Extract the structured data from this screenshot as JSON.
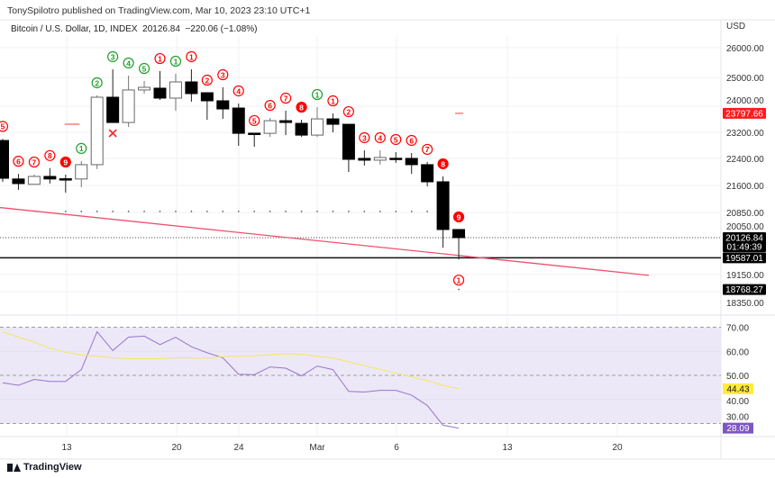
{
  "header": {
    "publisher": "TonySpilotro published on TradingView.com, Mar 10, 2023 23:10 UTC+1",
    "symbol": "Bitcoin / U.S. Dollar, 1D, INDEX",
    "last": "20126.84",
    "change": "−220.06 (−1.08%)"
  },
  "price_axis": {
    "currency": "USD",
    "ticks": [
      "26000.00",
      "25000.00",
      "24000.00",
      "23200.00",
      "22400.00",
      "21600.00",
      "20850.00",
      "20050.00",
      "19150.00",
      "18350.00"
    ],
    "badges": [
      {
        "text": "23797.66",
        "sub": "",
        "bg": "#ff1a1a",
        "fg": "#ffffff"
      },
      {
        "text": "20126.84",
        "sub": "01:49:39",
        "bg": "#000000",
        "fg": "#ffffff"
      },
      {
        "text": "19587.01",
        "sub": "",
        "bg": "#000000",
        "fg": "#ffffff"
      },
      {
        "text": "18768.27",
        "sub": "",
        "bg": "#000000",
        "fg": "#ffffff"
      }
    ]
  },
  "rsi_axis": {
    "ticks": [
      "70.00",
      "60.00",
      "50.00",
      "40.00",
      "30.00"
    ],
    "badges": [
      {
        "text": "44.43",
        "bg": "#ffeb3b",
        "fg": "#131722"
      },
      {
        "text": "28.09",
        "bg": "#7e57c2",
        "fg": "#ffffff"
      }
    ]
  },
  "time_axis": {
    "labels": [
      {
        "text": "13",
        "date": "Feb 13"
      },
      {
        "text": "20",
        "date": "Feb 20"
      },
      {
        "text": "24",
        "date": "Feb 24"
      },
      {
        "text": "Mar",
        "date": "Mar 1"
      },
      {
        "text": "6",
        "date": "Mar 6"
      },
      {
        "text": "13",
        "date": "Mar 13"
      },
      {
        "text": "20",
        "date": "Mar 20"
      }
    ]
  },
  "footer": {
    "brand": "TradingView"
  },
  "colors": {
    "up_count": "#1e9e2a",
    "down_count": "#ff0000",
    "trendline": "#f0506e",
    "rsi": "#9575cd",
    "rsi_ma": "#f5e663",
    "rsi_band": "#ede8f7"
  },
  "chart_data": [
    {
      "type": "candlestick",
      "scale": "log",
      "levels": {
        "horizontal_line": 19587.01,
        "last_price": 20126.84,
        "red_mark": 23797.66,
        "red_mark_left": 23450,
        "support_dots": 20850,
        "low_dot": 18768.27
      },
      "trendline": [
        {
          "date": "Feb 9",
          "price": 20960
        },
        {
          "date": "Mar 20",
          "price": 19130
        }
      ],
      "cross_mark": {
        "date": "Feb 15"
      },
      "candles": [
        {
          "date": "Feb 9",
          "o": 22943,
          "h": 22990,
          "l": 21700,
          "c": 21804,
          "setup": {
            "n": "5",
            "color": "red",
            "filled": false
          }
        },
        {
          "date": "Feb 10",
          "o": 21783,
          "h": 21934,
          "l": 21466,
          "c": 21648,
          "setup": {
            "n": "6",
            "color": "red",
            "filled": false
          }
        },
        {
          "date": "Feb 11",
          "o": 21627,
          "h": 21910,
          "l": 21627,
          "c": 21858,
          "setup": {
            "n": "7",
            "color": "red",
            "filled": false
          }
        },
        {
          "date": "Feb 12",
          "o": 21858,
          "h": 22103,
          "l": 21648,
          "c": 21783,
          "setup": {
            "n": "8",
            "color": "red",
            "filled": false
          }
        },
        {
          "date": "Feb 13",
          "o": 21790,
          "h": 21910,
          "l": 21385,
          "c": 21783,
          "setup": {
            "n": "9",
            "color": "red",
            "filled": true
          }
        },
        {
          "date": "Feb 14",
          "o": 21783,
          "h": 22316,
          "l": 21544,
          "c": 22207,
          "setup": {
            "n": "1",
            "color": "green",
            "filled": false
          }
        },
        {
          "date": "Feb 15",
          "o": 22207,
          "h": 24381,
          "l": 22077,
          "c": 24321,
          "setup": {
            "n": "2",
            "color": "green",
            "filled": false
          }
        },
        {
          "date": "Feb 16",
          "o": 24321,
          "h": 25254,
          "l": 23507,
          "c": 23507,
          "setup": {
            "n": "3",
            "color": "green",
            "filled": false
          }
        },
        {
          "date": "Feb 17",
          "o": 23507,
          "h": 25041,
          "l": 23364,
          "c": 24560,
          "setup": {
            "n": "4",
            "color": "green",
            "filled": false
          }
        },
        {
          "date": "Feb 18",
          "o": 24560,
          "h": 24858,
          "l": 24440,
          "c": 24648,
          "setup": {
            "n": "5",
            "color": "green",
            "filled": false
          }
        },
        {
          "date": "Feb 19",
          "o": 24619,
          "h": 25191,
          "l": 24233,
          "c": 24292,
          "setup": {
            "n": "1",
            "color": "red",
            "filled": false
          }
        },
        {
          "date": "Feb 20",
          "o": 24292,
          "h": 25100,
          "l": 23882,
          "c": 24828,
          "setup": {
            "n": "1",
            "color": "green",
            "filled": false
          }
        },
        {
          "date": "Feb 21",
          "o": 24828,
          "h": 25254,
          "l": 24175,
          "c": 24440,
          "setup": {
            "n": "1",
            "color": "red",
            "filled": false
          }
        },
        {
          "date": "Feb 22",
          "o": 24469,
          "h": 24469,
          "l": 23592,
          "c": 24204,
          "setup": {
            "n": "2",
            "color": "red",
            "filled": false
          }
        },
        {
          "date": "Feb 23",
          "o": 24204,
          "h": 24648,
          "l": 23621,
          "c": 23940,
          "setup": {
            "n": "3",
            "color": "red",
            "filled": false
          }
        },
        {
          "date": "Feb 24",
          "o": 23969,
          "h": 24116,
          "l": 22778,
          "c": 23166,
          "setup": {
            "n": "4",
            "color": "red",
            "filled": false
          }
        },
        {
          "date": "Feb 25",
          "o": 23170,
          "h": 23170,
          "l": 22750,
          "c": 23160,
          "setup": {
            "n": "5",
            "color": "red",
            "filled": false
          }
        },
        {
          "date": "Feb 26",
          "o": 23166,
          "h": 23649,
          "l": 23054,
          "c": 23564,
          "setup": {
            "n": "6",
            "color": "red",
            "filled": false
          }
        },
        {
          "date": "Feb 27",
          "o": 23564,
          "h": 23882,
          "l": 23110,
          "c": 23507,
          "setup": {
            "n": "7",
            "color": "red",
            "filled": false
          }
        },
        {
          "date": "Feb 28",
          "o": 23479,
          "h": 23592,
          "l": 23054,
          "c": 23110,
          "setup": {
            "n": "8",
            "color": "red",
            "filled": true
          }
        },
        {
          "date": "Mar 1",
          "o": 23110,
          "h": 23998,
          "l": 23054,
          "c": 23621,
          "setup": {
            "n": "1",
            "color": "green",
            "filled": false
          }
        },
        {
          "date": "Mar 2",
          "o": 23621,
          "h": 23795,
          "l": 23195,
          "c": 23450,
          "setup": {
            "n": "1",
            "color": "red",
            "filled": false
          }
        },
        {
          "date": "Mar 3",
          "o": 23450,
          "h": 23450,
          "l": 21990,
          "c": 22368,
          "setup": {
            "n": "2",
            "color": "red",
            "filled": false
          }
        },
        {
          "date": "Mar 4",
          "o": 22396,
          "h": 22641,
          "l": 22181,
          "c": 22342,
          "setup": {
            "n": "3",
            "color": "red",
            "filled": false
          }
        },
        {
          "date": "Mar 5",
          "o": 22342,
          "h": 22641,
          "l": 22207,
          "c": 22423,
          "setup": {
            "n": "4",
            "color": "red",
            "filled": false
          }
        },
        {
          "date": "Mar 6",
          "o": 22400,
          "h": 22586,
          "l": 22261,
          "c": 22396,
          "setup": {
            "n": "5",
            "color": "red",
            "filled": false
          }
        },
        {
          "date": "Mar 7",
          "o": 22396,
          "h": 22559,
          "l": 21934,
          "c": 22207,
          "setup": {
            "n": "6",
            "color": "red",
            "filled": false
          }
        },
        {
          "date": "Mar 8",
          "o": 22207,
          "h": 22288,
          "l": 21566,
          "c": 21700,
          "setup": {
            "n": "7",
            "color": "red",
            "filled": false
          }
        },
        {
          "date": "Mar 9",
          "o": 21700,
          "h": 21858,
          "l": 19856,
          "c": 20348,
          "setup": {
            "n": "8",
            "color": "red",
            "filled": true
          }
        },
        {
          "date": "Mar 10",
          "o": 20348,
          "h": 20348,
          "l": 19544,
          "c": 20126.84,
          "setup": {
            "n": "9",
            "color": "red",
            "filled": true
          },
          "below": {
            "n": "1",
            "color": "red"
          }
        }
      ]
    },
    {
      "type": "line",
      "ylim": [
        30,
        70
      ],
      "levels": [
        70,
        50,
        30
      ],
      "series": [
        {
          "values": [
            46.9,
            45.9,
            48.3,
            47.5,
            47.5,
            52.4,
            68.1,
            60.3,
            65.9,
            66.3,
            62.8,
            65.8,
            61.9,
            59.4,
            57.3,
            50.5,
            50.3,
            53.5,
            53.0,
            49.8,
            53.9,
            52.4,
            43.4,
            43.1,
            43.8,
            43.8,
            41.8,
            37.5,
            29.3,
            28.09
          ]
        },
        {
          "values": [
            68.1,
            65.9,
            63.8,
            61.3,
            59.6,
            58.4,
            58.0,
            57.3,
            56.9,
            56.9,
            56.9,
            57.3,
            57.3,
            57.1,
            57.8,
            58.0,
            58.1,
            58.6,
            59.0,
            58.8,
            57.9,
            57.3,
            55.6,
            54.0,
            52.5,
            51.0,
            49.4,
            47.8,
            45.9,
            44.43
          ]
        }
      ]
    }
  ]
}
